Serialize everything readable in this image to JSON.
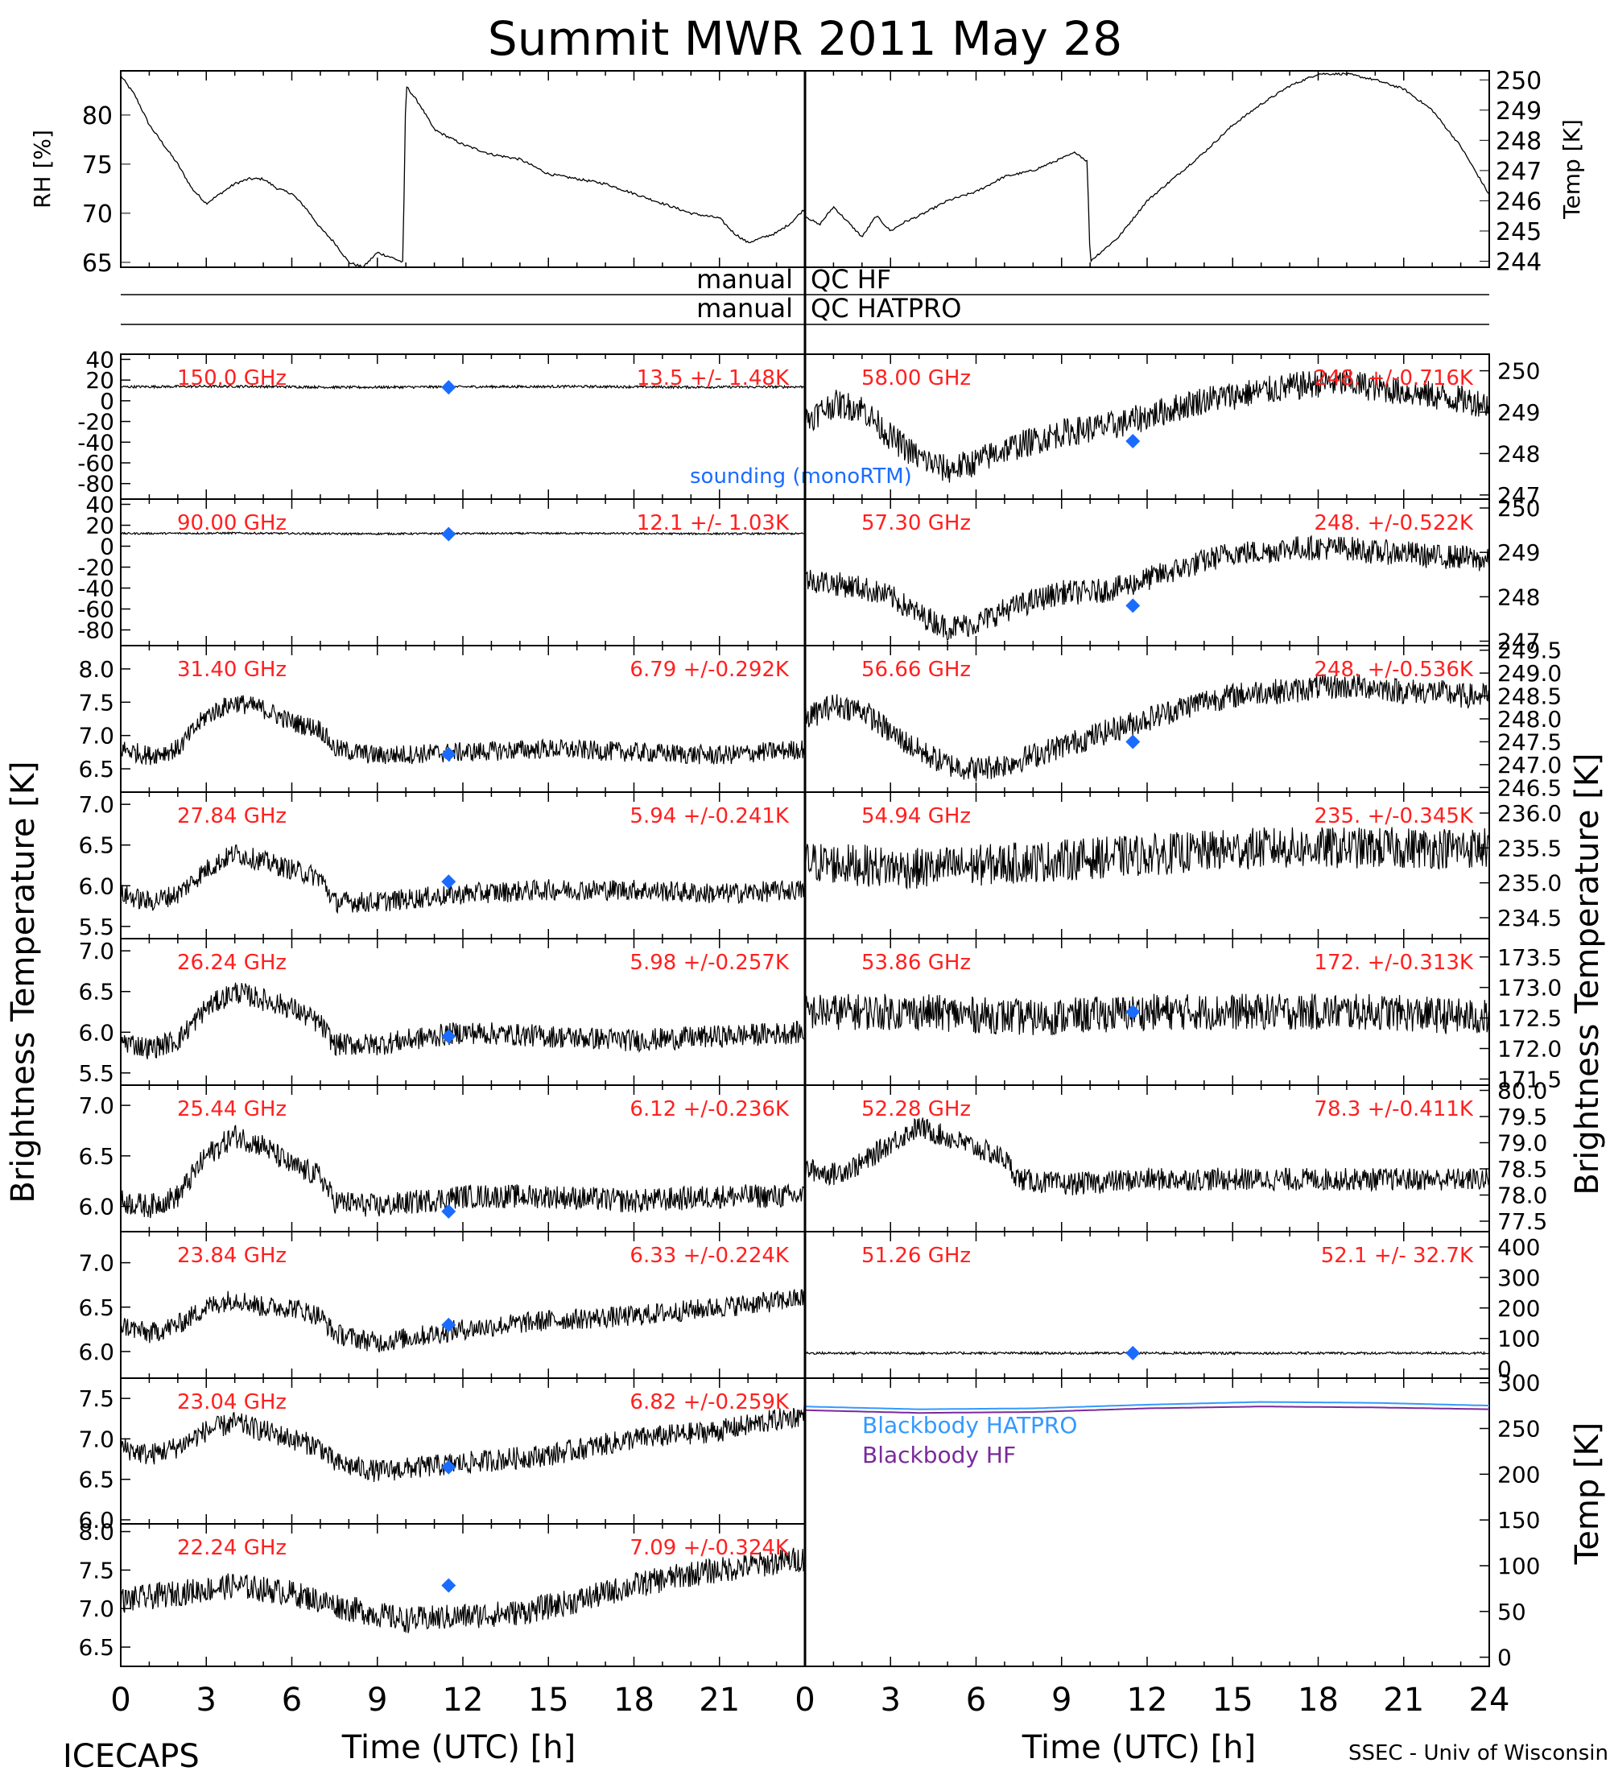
{
  "title": "Summit MWR 2011 May 28",
  "footer": {
    "left": "ICECAPS",
    "right": "SSEC - Univ of Wisconsin"
  },
  "colors": {
    "trace": "#000000",
    "label": "#ff2020",
    "sounding": "#1a6cff",
    "bb_hatpro": "#3399ff",
    "bb_hf": "#7a2a9a"
  },
  "x_axis": {
    "label": "Time (UTC) [h]",
    "ticks": [
      0,
      3,
      6,
      9,
      12,
      15,
      18,
      21,
      24
    ],
    "tick_labels_left": [
      "0",
      "3",
      "6",
      "9",
      "12",
      "15",
      "18",
      "21",
      ""
    ],
    "tick_labels_right": [
      "0",
      "3",
      "6",
      "9",
      "12",
      "15",
      "18",
      "21",
      "24"
    ],
    "range": [
      0,
      24
    ]
  },
  "y_axis_labels": {
    "rh": "RH [%]",
    "temp": "Temp [K]",
    "tb_left": "Brightness Temperature [K]",
    "tb_right": "Brightness Temperature [K]",
    "bb_temp": "Temp [K]"
  },
  "qc": {
    "manual_1": "manual",
    "qc_1": "QC HF",
    "manual_2": "manual",
    "qc_2": "QC HATPRO"
  },
  "legend": {
    "sounding": "sounding (monoRTM)",
    "bb_hatpro": "Blackbody HATPRO",
    "bb_hf": "Blackbody HF"
  },
  "chart_data": [
    {
      "id": "met",
      "type": "line",
      "series": [
        {
          "name": "RH",
          "axis": "left",
          "ylim": [
            64.5,
            84.5
          ],
          "yticks": [
            65,
            70,
            75,
            80
          ],
          "x": [
            0,
            0.5,
            1,
            1.5,
            2,
            2.5,
            3,
            3.5,
            4,
            4.5,
            5,
            5.5,
            6,
            6.5,
            7,
            7.5,
            8,
            8.5,
            9,
            9.5,
            9.9,
            10,
            10.5,
            11,
            12,
            13,
            14,
            15,
            16,
            17,
            18,
            19,
            20,
            21,
            21.5,
            22,
            22.5,
            23,
            23.5,
            24
          ],
          "y": [
            84,
            82,
            79,
            77,
            75,
            72.5,
            71,
            72,
            73,
            73.5,
            73.5,
            72.5,
            72,
            70.5,
            68.5,
            67,
            65,
            64.5,
            66,
            65.5,
            65,
            83,
            81,
            78.5,
            77,
            76,
            75.5,
            74,
            73.5,
            73,
            72,
            71,
            70,
            69.5,
            68,
            67,
            67.5,
            68,
            69,
            70.5
          ]
        },
        {
          "name": "Temp",
          "axis": "right",
          "ylim": [
            243.8,
            250.3
          ],
          "yticks": [
            244,
            245,
            246,
            247,
            248,
            249,
            250
          ],
          "x": [
            0,
            0.5,
            1,
            1.5,
            2,
            2.5,
            3,
            3.5,
            4,
            5,
            6,
            7,
            8,
            9,
            9.5,
            9.9,
            10,
            11,
            12,
            13,
            14,
            15,
            16,
            17,
            18,
            19,
            20,
            21,
            22,
            23,
            23.5,
            24
          ],
          "y": [
            245.5,
            245.2,
            245.8,
            245.3,
            244.8,
            245.5,
            245,
            245.3,
            245.5,
            246,
            246.3,
            246.8,
            247,
            247.4,
            247.6,
            247.3,
            244,
            244.8,
            246,
            246.8,
            247.6,
            248.5,
            249.2,
            249.8,
            250.2,
            250.2,
            250,
            249.7,
            249,
            247.8,
            247,
            246.2
          ]
        }
      ]
    },
    {
      "id": "150.0",
      "freq": "150.0 GHz",
      "stat": "13.5 +/- 1.48K",
      "side": "left",
      "ylim": [
        -95,
        45
      ],
      "yticks": [
        -80,
        -60,
        -40,
        -20,
        0,
        20,
        40
      ],
      "ytick_labels": [
        "-80",
        "-60",
        "-40",
        "-20",
        "0",
        "20",
        "40"
      ],
      "x": [
        0,
        4,
        8,
        12,
        16,
        20,
        24
      ],
      "y": [
        13.5,
        14,
        13,
        13.5,
        13.8,
        13.2,
        13.5
      ],
      "noise": 1.2,
      "sounding": [
        11.5,
        13
      ]
    },
    {
      "id": "58.00",
      "freq": "58.00 GHz",
      "stat": "248. +/-0.716K",
      "side": "right",
      "ylim": [
        246.9,
        250.4
      ],
      "yticks": [
        247,
        248,
        249,
        250
      ],
      "ytick_labels": [
        "247",
        "248",
        "249",
        "250"
      ],
      "x": [
        0,
        1,
        2,
        3,
        4,
        5,
        6,
        7,
        8,
        9,
        10,
        11,
        12,
        13,
        14,
        15,
        16,
        17,
        18,
        19,
        20,
        21,
        22,
        23,
        24
      ],
      "y": [
        248.8,
        249.2,
        249.1,
        248.4,
        247.9,
        247.6,
        247.8,
        248.1,
        248.3,
        248.5,
        248.6,
        248.7,
        248.9,
        249.1,
        249.3,
        249.4,
        249.5,
        249.6,
        249.7,
        249.7,
        249.6,
        249.5,
        249.4,
        249.3,
        249.2
      ],
      "noise": 0.35,
      "sounding": [
        11.5,
        248.3
      ]
    },
    {
      "id": "90.00",
      "freq": "90.00 GHz",
      "stat": "12.1 +/- 1.03K",
      "side": "left",
      "ylim": [
        -95,
        45
      ],
      "yticks": [
        -80,
        -60,
        -40,
        -20,
        0,
        20,
        40
      ],
      "ytick_labels": [
        "-80",
        "-60",
        "-40",
        "-20",
        "0",
        "20",
        "40"
      ],
      "x": [
        0,
        4,
        8,
        12,
        16,
        20,
        24
      ],
      "y": [
        12.1,
        12.5,
        11.8,
        12.1,
        12.3,
        11.9,
        12
      ],
      "noise": 0.9,
      "sounding": [
        11.5,
        11.5
      ]
    },
    {
      "id": "57.30",
      "freq": "57.30 GHz",
      "stat": "248. +/-0.522K",
      "side": "right",
      "ylim": [
        246.9,
        250.2
      ],
      "yticks": [
        247,
        248,
        249,
        250
      ],
      "ytick_labels": [
        "247",
        "248",
        "249",
        "250"
      ],
      "x": [
        0,
        1,
        2,
        3,
        4,
        5,
        6,
        7,
        8,
        9,
        10,
        11,
        12,
        13,
        14,
        15,
        16,
        17,
        18,
        19,
        20,
        21,
        22,
        23,
        24
      ],
      "y": [
        248.4,
        248.3,
        248.2,
        248,
        247.6,
        247.3,
        247.4,
        247.7,
        247.9,
        248.1,
        248.1,
        248.2,
        248.4,
        248.6,
        248.8,
        249,
        249,
        249.1,
        249.1,
        249.1,
        249,
        249,
        248.9,
        248.9,
        248.8
      ],
      "noise": 0.28,
      "sounding": [
        11.5,
        247.8
      ]
    },
    {
      "id": "31.40",
      "freq": "31.40 GHz",
      "stat": "6.79 +/-0.292K",
      "side": "left",
      "ylim": [
        6.15,
        8.35
      ],
      "yticks": [
        6.5,
        7,
        7.5,
        8
      ],
      "ytick_labels": [
        "6.5",
        "7.0",
        "7.5",
        "8.0"
      ],
      "x": [
        0,
        1,
        2,
        3,
        4,
        5,
        6,
        7,
        7.5,
        9,
        12,
        15,
        18,
        21,
        24
      ],
      "y": [
        6.8,
        6.7,
        6.8,
        7.3,
        7.5,
        7.4,
        7.2,
        7.1,
        6.8,
        6.7,
        6.75,
        6.8,
        6.75,
        6.7,
        6.8
      ],
      "noise": 0.15,
      "sounding": [
        11.5,
        6.72
      ]
    },
    {
      "id": "56.66",
      "freq": "56.66 GHz",
      "stat": "248. +/-0.536K",
      "side": "right",
      "ylim": [
        246.4,
        249.6
      ],
      "yticks": [
        246.5,
        247,
        247.5,
        248,
        248.5,
        249,
        249.5
      ],
      "ytick_labels": [
        "246.5",
        "247.0",
        "247.5",
        "248.0",
        "248.5",
        "249.0",
        "249.5"
      ],
      "x": [
        0,
        1,
        2,
        3,
        4,
        5,
        6,
        7,
        8,
        9,
        10,
        11,
        12,
        13,
        14,
        15,
        16,
        17,
        18,
        19,
        20,
        21,
        22,
        23,
        24
      ],
      "y": [
        248,
        248.3,
        248.2,
        247.7,
        247.3,
        247,
        246.9,
        247,
        247.2,
        247.4,
        247.6,
        247.8,
        248,
        248.2,
        248.4,
        248.5,
        248.6,
        248.6,
        248.7,
        248.7,
        248.7,
        248.6,
        248.6,
        248.5,
        248.5
      ],
      "noise": 0.28,
      "sounding": [
        11.5,
        247.5
      ]
    },
    {
      "id": "27.84",
      "freq": "27.84 GHz",
      "stat": "5.94 +/-0.241K",
      "side": "left",
      "ylim": [
        5.35,
        7.15
      ],
      "yticks": [
        5.5,
        6,
        6.5,
        7
      ],
      "ytick_labels": [
        "5.5",
        "6.0",
        "6.5",
        "7.0"
      ],
      "x": [
        0,
        1,
        2,
        3,
        4,
        5,
        6,
        7,
        7.5,
        9,
        12,
        15,
        18,
        21,
        24
      ],
      "y": [
        5.9,
        5.8,
        5.9,
        6.2,
        6.4,
        6.3,
        6.2,
        6.1,
        5.8,
        5.8,
        5.9,
        5.95,
        5.95,
        5.9,
        5.95
      ],
      "noise": 0.13,
      "sounding": [
        11.5,
        6.05
      ]
    },
    {
      "id": "54.94",
      "freq": "54.94 GHz",
      "stat": "235. +/-0.345K",
      "side": "right",
      "ylim": [
        234.2,
        236.3
      ],
      "yticks": [
        234.5,
        235,
        235.5,
        236
      ],
      "ytick_labels": [
        "234.5",
        "235.0",
        "235.5",
        "236.0"
      ],
      "x": [
        0,
        4,
        8,
        12,
        16,
        20,
        24
      ],
      "y": [
        235.3,
        235.2,
        235.3,
        235.4,
        235.5,
        235.5,
        235.5
      ],
      "noise": 0.3,
      "sounding": null
    },
    {
      "id": "26.24",
      "freq": "26.24 GHz",
      "stat": "5.98 +/-0.257K",
      "side": "left",
      "ylim": [
        5.35,
        7.15
      ],
      "yticks": [
        5.5,
        6,
        6.5,
        7
      ],
      "ytick_labels": [
        "5.5",
        "6.0",
        "6.5",
        "7.0"
      ],
      "x": [
        0,
        1,
        2,
        3,
        4,
        5,
        6,
        7,
        7.5,
        9,
        12,
        15,
        18,
        21,
        24
      ],
      "y": [
        5.9,
        5.8,
        5.9,
        6.3,
        6.5,
        6.4,
        6.3,
        6.1,
        5.85,
        5.85,
        6,
        5.95,
        5.9,
        5.95,
        6
      ],
      "noise": 0.14,
      "sounding": [
        11.5,
        5.95
      ]
    },
    {
      "id": "53.86",
      "freq": "53.86 GHz",
      "stat": "172. +/-0.313K",
      "side": "right",
      "ylim": [
        171.4,
        173.8
      ],
      "yticks": [
        171.5,
        172,
        172.5,
        173,
        173.5
      ],
      "ytick_labels": [
        "171.5",
        "172.0",
        "172.5",
        "173.0",
        "173.5"
      ],
      "x": [
        0,
        4,
        8,
        12,
        16,
        20,
        24
      ],
      "y": [
        172.6,
        172.6,
        172.5,
        172.6,
        172.6,
        172.6,
        172.5
      ],
      "noise": 0.3,
      "sounding": [
        11.5,
        172.6
      ]
    },
    {
      "id": "25.44",
      "freq": "25.44 GHz",
      "stat": "6.12 +/-0.236K",
      "side": "left",
      "ylim": [
        5.75,
        7.2
      ],
      "yticks": [
        6,
        6.5,
        7
      ],
      "ytick_labels": [
        "6.0",
        "6.5",
        "7.0"
      ],
      "x": [
        0,
        1,
        2,
        3,
        4,
        5,
        6,
        7,
        7.5,
        9,
        12,
        15,
        18,
        21,
        24
      ],
      "y": [
        6.05,
        6,
        6.1,
        6.5,
        6.7,
        6.6,
        6.4,
        6.3,
        6.05,
        6,
        6.1,
        6.1,
        6.05,
        6.1,
        6.1
      ],
      "noise": 0.12,
      "sounding": [
        11.5,
        5.95
      ]
    },
    {
      "id": "52.28",
      "freq": "52.28 GHz",
      "stat": "78.3 +/-0.411K",
      "side": "right",
      "ylim": [
        77.3,
        80.1
      ],
      "yticks": [
        77.5,
        78,
        78.5,
        79,
        79.5,
        80
      ],
      "ytick_labels": [
        "77.5",
        "78.0",
        "78.5",
        "79.0",
        "79.5",
        "80.0"
      ],
      "x": [
        0,
        1,
        2,
        3,
        4,
        5,
        6,
        7,
        7.5,
        9,
        12,
        15,
        18,
        21,
        24
      ],
      "y": [
        78.5,
        78.4,
        78.6,
        79,
        79.3,
        79.1,
        78.9,
        78.7,
        78.3,
        78.2,
        78.3,
        78.3,
        78.3,
        78.3,
        78.3
      ],
      "noise": 0.22,
      "sounding": null
    },
    {
      "id": "23.84",
      "freq": "23.84 GHz",
      "stat": "6.33 +/-0.224K",
      "side": "left",
      "ylim": [
        5.7,
        7.35
      ],
      "yticks": [
        6,
        6.5,
        7
      ],
      "ytick_labels": [
        "6.0",
        "6.5",
        "7.0"
      ],
      "x": [
        0,
        1,
        2,
        3,
        4,
        5,
        6,
        7,
        7.5,
        9,
        12,
        15,
        18,
        21,
        24
      ],
      "y": [
        6.3,
        6.2,
        6.3,
        6.5,
        6.6,
        6.5,
        6.5,
        6.4,
        6.2,
        6.1,
        6.25,
        6.35,
        6.4,
        6.5,
        6.6
      ],
      "noise": 0.12,
      "sounding": [
        11.5,
        6.3
      ]
    },
    {
      "id": "51.26",
      "freq": "51.26 GHz",
      "stat": "52.1 +/- 32.7K",
      "side": "right",
      "ylim": [
        -30,
        450
      ],
      "yticks": [
        0,
        100,
        200,
        300,
        400
      ],
      "ytick_labels": [
        "0",
        "100",
        "200",
        "300",
        "400"
      ],
      "x": [
        0,
        4,
        8,
        12,
        16,
        20,
        24
      ],
      "y": [
        52,
        52,
        52,
        52,
        52,
        52,
        52
      ],
      "noise": 4,
      "sounding": [
        11.5,
        52
      ]
    },
    {
      "id": "23.04",
      "freq": "23.04 GHz",
      "stat": "6.82 +/-0.259K",
      "side": "left",
      "ylim": [
        5.95,
        7.75
      ],
      "yticks": [
        6,
        6.5,
        7,
        7.5
      ],
      "ytick_labels": [
        "6.0",
        "6.5",
        "7.0",
        "7.5"
      ],
      "x": [
        0,
        1,
        2,
        3,
        4,
        5,
        6,
        7,
        7.5,
        9,
        12,
        15,
        18,
        21,
        24
      ],
      "y": [
        6.9,
        6.8,
        6.9,
        7.1,
        7.2,
        7.1,
        7,
        6.9,
        6.7,
        6.6,
        6.7,
        6.8,
        7,
        7.1,
        7.3
      ],
      "noise": 0.14,
      "sounding": [
        11.5,
        6.65
      ]
    },
    {
      "id": "bb",
      "side": "right",
      "ylim": [
        -10,
        305
      ],
      "yticks": [
        0,
        50,
        100,
        150,
        200,
        250,
        300
      ],
      "ytick_labels": [
        "0",
        "50",
        "100",
        "150",
        "200",
        "250",
        "300"
      ],
      "series": [
        {
          "name": "Blackbody HATPRO",
          "x": [
            0,
            4,
            8,
            12,
            16,
            20,
            24
          ],
          "y": [
            274,
            271,
            272,
            276,
            279,
            278,
            275
          ]
        },
        {
          "name": "Blackbody HF",
          "x": [
            0,
            4,
            8,
            12,
            16,
            20,
            24
          ],
          "y": [
            270,
            267,
            268,
            272,
            274,
            273,
            271
          ]
        }
      ]
    },
    {
      "id": "22.24",
      "freq": "22.24 GHz",
      "stat": "7.09 +/-0.324K",
      "side": "left",
      "ylim": [
        6.25,
        8.1
      ],
      "yticks": [
        6.5,
        7,
        7.5,
        8
      ],
      "ytick_labels": [
        "6.5",
        "7.0",
        "7.5",
        "8.0"
      ],
      "x": [
        0,
        2,
        4,
        6,
        8,
        10,
        12,
        14,
        16,
        18,
        20,
        22,
        24
      ],
      "y": [
        7.1,
        7.2,
        7.3,
        7.2,
        7,
        6.85,
        6.9,
        6.95,
        7.1,
        7.3,
        7.45,
        7.55,
        7.65
      ],
      "noise": 0.17,
      "sounding": [
        11.5,
        7.3
      ]
    }
  ]
}
